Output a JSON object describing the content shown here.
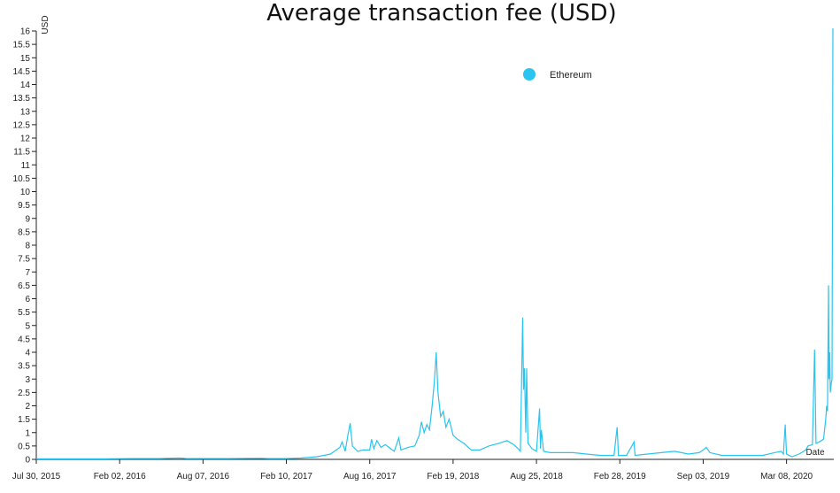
{
  "chart_data": {
    "type": "line",
    "title": "Average transaction fee (USD)",
    "xlabel": "Date",
    "ylabel": "USD",
    "ylim": [
      0,
      16
    ],
    "y_ticks": [
      "0",
      "0.5",
      "1",
      "1.5",
      "2",
      "2.5",
      "3",
      "3.5",
      "4",
      "4.5",
      "5",
      "5.5",
      "6",
      "6.5",
      "7",
      "7.5",
      "8",
      "8.5",
      "9",
      "9.5",
      "10",
      "10.5",
      "11",
      "11.5",
      "12",
      "12.5",
      "13",
      "13.5",
      "14",
      "14.5",
      "15",
      "15.5",
      "16"
    ],
    "x_range": [
      "2015-07-30",
      "2020-06-22"
    ],
    "x_ticks": [
      {
        "date": "2015-07-30",
        "label": "Jul 30, 2015"
      },
      {
        "date": "2016-02-02",
        "label": "Feb 02, 2016"
      },
      {
        "date": "2016-08-07",
        "label": "Aug 07, 2016"
      },
      {
        "date": "2017-02-10",
        "label": "Feb 10, 2017"
      },
      {
        "date": "2017-08-16",
        "label": "Aug 16, 2017"
      },
      {
        "date": "2018-02-19",
        "label": "Feb 19, 2018"
      },
      {
        "date": "2018-08-25",
        "label": "Aug 25, 2018"
      },
      {
        "date": "2019-02-28",
        "label": "Feb 28, 2019"
      },
      {
        "date": "2019-09-03",
        "label": "Sep 03, 2019"
      },
      {
        "date": "2020-03-08",
        "label": "Mar 08, 2020"
      }
    ],
    "legend_position": "top-right",
    "grid": false,
    "series": [
      {
        "name": "Ethereum",
        "color": "#29c4ef",
        "points": [
          [
            "2015-07-30",
            0.02
          ],
          [
            "2015-10-01",
            0.02
          ],
          [
            "2016-01-01",
            0.02
          ],
          [
            "2016-03-01",
            0.03
          ],
          [
            "2016-05-01",
            0.03
          ],
          [
            "2016-06-15",
            0.05
          ],
          [
            "2016-07-01",
            0.03
          ],
          [
            "2016-10-01",
            0.03
          ],
          [
            "2016-12-15",
            0.04
          ],
          [
            "2017-01-01",
            0.03
          ],
          [
            "2017-02-10",
            0.03
          ],
          [
            "2017-03-15",
            0.05
          ],
          [
            "2017-04-20",
            0.1
          ],
          [
            "2017-05-20",
            0.2
          ],
          [
            "2017-06-10",
            0.45
          ],
          [
            "2017-06-15",
            0.65
          ],
          [
            "2017-06-22",
            0.3
          ],
          [
            "2017-06-28",
            0.9
          ],
          [
            "2017-07-03",
            1.35
          ],
          [
            "2017-07-08",
            0.5
          ],
          [
            "2017-07-20",
            0.3
          ],
          [
            "2017-08-01",
            0.35
          ],
          [
            "2017-08-16",
            0.35
          ],
          [
            "2017-08-20",
            0.75
          ],
          [
            "2017-08-25",
            0.4
          ],
          [
            "2017-09-01",
            0.7
          ],
          [
            "2017-09-10",
            0.45
          ],
          [
            "2017-09-20",
            0.55
          ],
          [
            "2017-10-10",
            0.3
          ],
          [
            "2017-10-20",
            0.8
          ],
          [
            "2017-10-25",
            0.35
          ],
          [
            "2017-11-10",
            0.45
          ],
          [
            "2017-11-25",
            0.5
          ],
          [
            "2017-12-05",
            0.9
          ],
          [
            "2017-12-10",
            1.4
          ],
          [
            "2017-12-16",
            1.0
          ],
          [
            "2017-12-22",
            1.3
          ],
          [
            "2017-12-28",
            1.1
          ],
          [
            "2018-01-03",
            2.0
          ],
          [
            "2018-01-08",
            2.9
          ],
          [
            "2018-01-12",
            4.0
          ],
          [
            "2018-01-16",
            2.5
          ],
          [
            "2018-01-22",
            1.6
          ],
          [
            "2018-01-28",
            1.8
          ],
          [
            "2018-02-03",
            1.2
          ],
          [
            "2018-02-10",
            1.5
          ],
          [
            "2018-02-19",
            0.9
          ],
          [
            "2018-03-01",
            0.75
          ],
          [
            "2018-03-15",
            0.6
          ],
          [
            "2018-04-01",
            0.35
          ],
          [
            "2018-04-20",
            0.35
          ],
          [
            "2018-05-10",
            0.5
          ],
          [
            "2018-06-01",
            0.6
          ],
          [
            "2018-06-20",
            0.7
          ],
          [
            "2018-07-05",
            0.55
          ],
          [
            "2018-07-15",
            0.4
          ],
          [
            "2018-07-20",
            0.3
          ],
          [
            "2018-07-25",
            5.3
          ],
          [
            "2018-07-27",
            2.6
          ],
          [
            "2018-07-29",
            3.4
          ],
          [
            "2018-08-01",
            1.0
          ],
          [
            "2018-08-03",
            3.4
          ],
          [
            "2018-08-06",
            0.6
          ],
          [
            "2018-08-15",
            0.4
          ],
          [
            "2018-08-25",
            0.3
          ],
          [
            "2018-09-01",
            1.9
          ],
          [
            "2018-09-03",
            0.4
          ],
          [
            "2018-09-05",
            1.1
          ],
          [
            "2018-09-10",
            0.3
          ],
          [
            "2018-09-25",
            0.25
          ],
          [
            "2018-10-15",
            0.25
          ],
          [
            "2018-11-15",
            0.25
          ],
          [
            "2018-12-15",
            0.2
          ],
          [
            "2019-01-15",
            0.15
          ],
          [
            "2019-02-15",
            0.15
          ],
          [
            "2019-02-22",
            1.2
          ],
          [
            "2019-02-25",
            0.15
          ],
          [
            "2019-03-15",
            0.15
          ],
          [
            "2019-04-01",
            0.65
          ],
          [
            "2019-04-03",
            0.15
          ],
          [
            "2019-05-01",
            0.2
          ],
          [
            "2019-06-01",
            0.25
          ],
          [
            "2019-07-01",
            0.3
          ],
          [
            "2019-08-01",
            0.2
          ],
          [
            "2019-08-25",
            0.25
          ],
          [
            "2019-09-03",
            0.35
          ],
          [
            "2019-09-10",
            0.45
          ],
          [
            "2019-09-18",
            0.25
          ],
          [
            "2019-10-15",
            0.15
          ],
          [
            "2019-12-01",
            0.15
          ],
          [
            "2020-01-15",
            0.15
          ],
          [
            "2020-02-10",
            0.25
          ],
          [
            "2020-02-25",
            0.3
          ],
          [
            "2020-03-01",
            0.2
          ],
          [
            "2020-03-05",
            1.3
          ],
          [
            "2020-03-08",
            0.2
          ],
          [
            "2020-03-20",
            0.1
          ],
          [
            "2020-04-05",
            0.2
          ],
          [
            "2020-04-20",
            0.35
          ],
          [
            "2020-04-25",
            0.5
          ],
          [
            "2020-05-05",
            0.55
          ],
          [
            "2020-05-10",
            4.1
          ],
          [
            "2020-05-13",
            0.6
          ],
          [
            "2020-05-20",
            0.65
          ],
          [
            "2020-05-30",
            0.75
          ],
          [
            "2020-06-04",
            1.5
          ],
          [
            "2020-06-06",
            2.0
          ],
          [
            "2020-06-08",
            1.8
          ],
          [
            "2020-06-10",
            6.5
          ],
          [
            "2020-06-11",
            3.0
          ],
          [
            "2020-06-13",
            4.0
          ],
          [
            "2020-06-14",
            2.5
          ],
          [
            "2020-06-16",
            2.8
          ],
          [
            "2020-06-18",
            3.0
          ],
          [
            "2020-06-20",
            16.1
          ]
        ]
      }
    ]
  }
}
